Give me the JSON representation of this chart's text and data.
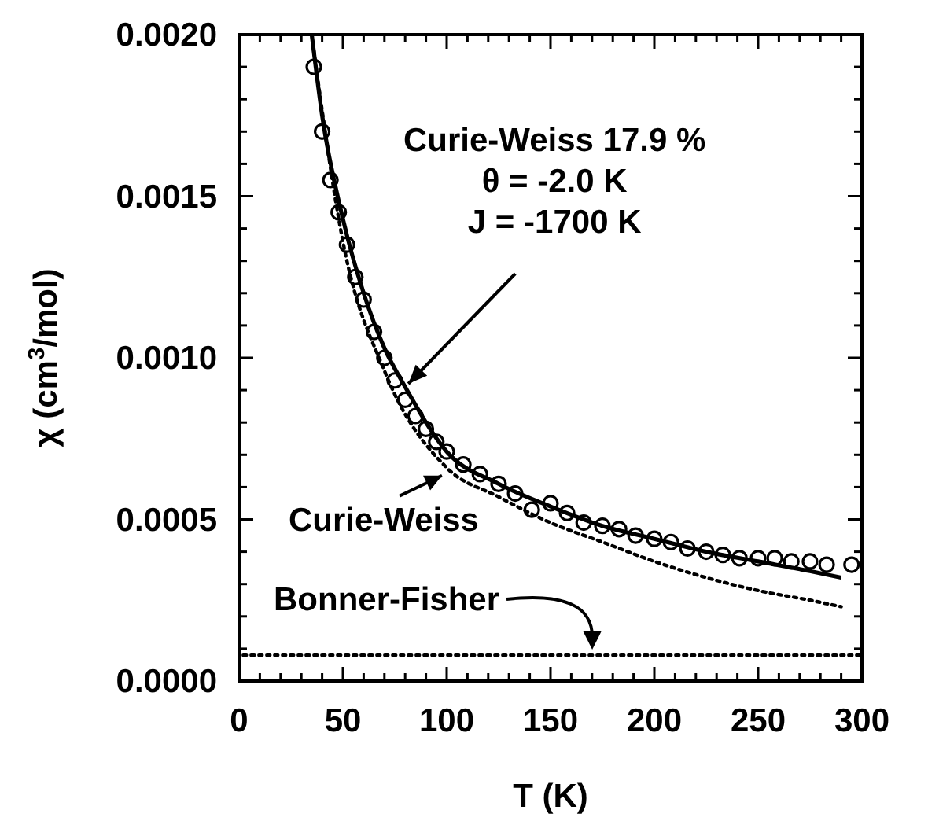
{
  "chart_data": {
    "type": "line",
    "xlabel": "T  (K)",
    "ylabel": "χ  (cm$^{3}$/mol)",
    "xlim": [
      0,
      300
    ],
    "xticks": [
      0,
      {
        "value": 10,
        "label": null
      },
      {
        "value": 20,
        "label": null
      },
      {
        "value": 30,
        "label": null
      },
      {
        "value": 40,
        "label": null
      },
      50,
      {
        "value": 60,
        "label": null
      },
      {
        "value": 70,
        "label": null
      },
      {
        "value": 80,
        "label": null
      },
      {
        "value": 90,
        "label": null
      },
      100,
      {
        "value": 110,
        "label": null
      },
      {
        "value": 120,
        "label": null
      },
      {
        "value": 130,
        "label": null
      },
      {
        "value": 140,
        "label": null
      },
      150,
      {
        "value": 160,
        "label": null
      },
      {
        "value": 170,
        "label": null
      },
      {
        "value": 180,
        "label": null
      },
      {
        "value": 190,
        "label": null
      },
      200,
      {
        "value": 210,
        "label": null
      },
      {
        "value": 220,
        "label": null
      },
      {
        "value": 230,
        "label": null
      },
      {
        "value": 240,
        "label": null
      },
      250,
      {
        "value": 260,
        "label": null
      },
      {
        "value": 270,
        "label": null
      },
      {
        "value": 280,
        "label": null
      },
      {
        "value": 290,
        "label": null
      },
      300
    ],
    "ylim": [
      0,
      0.002
    ],
    "yticks": [
      {
        "value": 0,
        "label": "0.0000"
      },
      {
        "value": 0.0001,
        "label": null
      },
      {
        "value": 0.0002,
        "label": null
      },
      {
        "value": 0.0003,
        "label": null
      },
      {
        "value": 0.0004,
        "label": null
      },
      {
        "value": 0.0005,
        "label": "0.0005"
      },
      {
        "value": 0.0006,
        "label": null
      },
      {
        "value": 0.0007,
        "label": null
      },
      {
        "value": 0.0008,
        "label": null
      },
      {
        "value": 0.0009,
        "label": null
      },
      {
        "value": 0.001,
        "label": "0.0010"
      },
      {
        "value": 0.0011,
        "label": null
      },
      {
        "value": 0.0012,
        "label": null
      },
      {
        "value": 0.0013,
        "label": null
      },
      {
        "value": 0.0014,
        "label": null
      },
      {
        "value": 0.0015,
        "label": "0.0015"
      },
      {
        "value": 0.0016,
        "label": null
      },
      {
        "value": 0.0017,
        "label": null
      },
      {
        "value": 0.0018,
        "label": null
      },
      {
        "value": 0.0019,
        "label": null
      },
      {
        "value": 0.002,
        "label": "0.0020"
      }
    ],
    "grid": false,
    "series": [
      {
        "type": "scatter",
        "marker": "circle",
        "color": "#000000",
        "x": [
          36,
          40,
          44,
          48,
          52,
          56,
          60,
          65,
          70,
          75,
          80,
          85,
          90,
          95,
          100,
          108,
          116,
          125,
          133,
          141,
          150,
          158,
          166,
          175,
          183,
          191,
          200,
          208,
          216,
          225,
          233,
          241,
          250,
          258,
          266,
          275,
          283,
          295
        ],
        "values": [
          0.0019,
          0.0017,
          0.00155,
          0.00145,
          0.00135,
          0.00125,
          0.00118,
          0.00108,
          0.001,
          0.00093,
          0.00087,
          0.00082,
          0.00078,
          0.00074,
          0.00071,
          0.00067,
          0.00064,
          0.00061,
          0.00058,
          0.00053,
          0.00055,
          0.00052,
          0.00049,
          0.00048,
          0.00047,
          0.00045,
          0.00044,
          0.00043,
          0.00041,
          0.0004,
          0.00039,
          0.00038,
          0.00038,
          0.00038,
          0.00037,
          0.00037,
          0.00036,
          0.00036
        ]
      },
      {
        "line_style": "solid",
        "color": "#000000",
        "x": [
          35,
          40,
          50,
          60,
          70,
          80,
          100,
          125,
          150,
          175,
          200,
          225,
          250,
          275,
          290
        ],
        "values": [
          0.002,
          0.00175,
          0.00143,
          0.0012,
          0.00103,
          0.00091,
          0.00071,
          0.00061,
          0.00054,
          0.00048,
          0.00044,
          0.0004,
          0.00037,
          0.00034,
          0.00032
        ]
      },
      {
        "line_style": "dotted",
        "color": "#000000",
        "x": [
          36,
          50,
          70,
          100,
          125,
          150,
          175,
          200,
          225,
          250,
          275,
          290
        ],
        "values": [
          0.00195,
          0.00136,
          0.00096,
          0.00066,
          0.00057,
          0.00049,
          0.00043,
          0.00037,
          0.00032,
          0.00028,
          0.00025,
          0.00023
        ]
      },
      {
        "line_style": "dotted",
        "color": "#000000",
        "x": [
          2,
          300
        ],
        "values": [
          8e-05,
          8e-05
        ]
      }
    ],
    "annotations": [
      "Curie-Weiss 17.9 %",
      "θ = -2.0 K",
      {
        "text": "J = -1700 K",
        "x": 80,
        "y": 0.00091
      },
      {
        "text": "Curie-Weiss",
        "x": 100,
        "y": 0.00066
      },
      "Bonner-Fisher"
    ]
  }
}
